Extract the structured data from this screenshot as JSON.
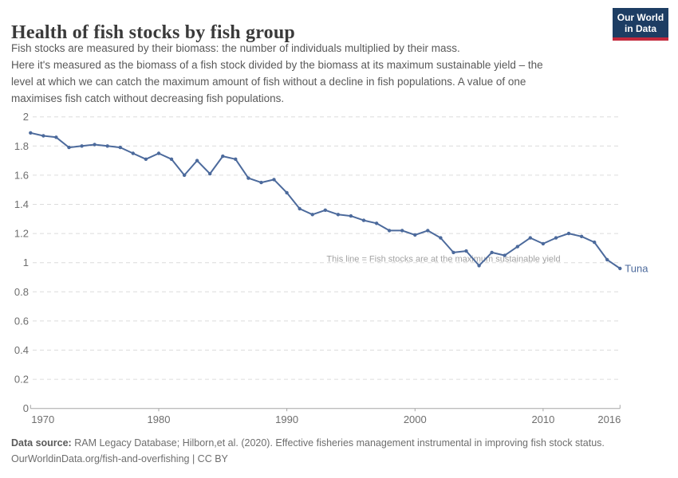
{
  "header": {
    "title": "Health of fish stocks by fish group",
    "subtitle_lines": [
      "Fish stocks are measured by their biomass: the number of individuals multiplied by their mass.",
      "Here it's measured as the biomass of a fish stock divided by the biomass at its maximum sustainable yield – the",
      "level at which we can catch the maximum amount of fish without a decline in fish populations. A value of one",
      "maximises fish catch without decreasing fish populations."
    ],
    "logo": {
      "line1": "Our World",
      "line2": "in Data"
    }
  },
  "chart_data": {
    "type": "line",
    "title": "Health of fish stocks by fish group",
    "xlabel": "",
    "ylabel": "",
    "ylim": [
      0,
      2
    ],
    "grid": "horizontal-dashed",
    "legend_position": "end-of-line",
    "x": [
      1970,
      1971,
      1972,
      1973,
      1974,
      1975,
      1976,
      1977,
      1978,
      1979,
      1980,
      1981,
      1982,
      1983,
      1984,
      1985,
      1986,
      1987,
      1988,
      1989,
      1990,
      1991,
      1992,
      1993,
      1994,
      1995,
      1996,
      1997,
      1998,
      1999,
      2000,
      2001,
      2002,
      2003,
      2004,
      2005,
      2006,
      2007,
      2008,
      2009,
      2010,
      2011,
      2012,
      2013,
      2014,
      2015,
      2016
    ],
    "series": [
      {
        "name": "Tuna",
        "color": "#4c6a9c",
        "values": [
          1.89,
          1.87,
          1.86,
          1.79,
          1.8,
          1.81,
          1.8,
          1.79,
          1.75,
          1.71,
          1.75,
          1.71,
          1.6,
          1.7,
          1.61,
          1.73,
          1.71,
          1.58,
          1.55,
          1.57,
          1.48,
          1.37,
          1.33,
          1.36,
          1.33,
          1.32,
          1.29,
          1.27,
          1.22,
          1.22,
          1.19,
          1.22,
          1.17,
          1.07,
          1.08,
          0.98,
          1.07,
          1.05,
          1.11,
          1.17,
          1.13,
          1.17,
          1.2,
          1.18,
          1.14,
          1.02,
          0.96
        ]
      }
    ],
    "yticks": [
      0,
      0.2,
      0.4,
      0.6,
      0.8,
      1,
      1.2,
      1.4,
      1.6,
      1.8,
      2
    ],
    "xticks": [
      1970,
      1980,
      1990,
      2000,
      2010,
      2016
    ],
    "annotation": "This line = Fish stocks are at the maximum sustainable yield",
    "annotation_value": 1
  },
  "footer": {
    "source_label": "Data source:",
    "source_text": " RAM Legacy Database; Hilborn,et al. (2020). Effective fisheries management instrumental in improving fish stock status.",
    "license_line": "OurWorldinData.org/fish-and-overfishing | CC BY"
  },
  "colors": {
    "series_blue": "#4c6a9c",
    "logo_navy": "#1d3d63",
    "logo_red": "#c2283c",
    "gridline": "#dcdcdc",
    "axis_line": "#a5a5a5",
    "tick_label": "#6e6e6e",
    "annotation_gray": "#a3a3a3"
  }
}
